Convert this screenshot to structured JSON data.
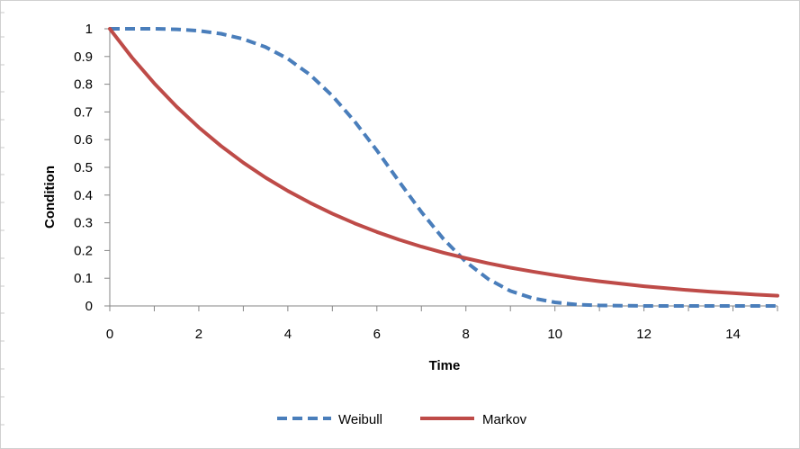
{
  "chart_data": {
    "type": "line",
    "title": "",
    "xlabel": "Time",
    "ylabel": "Condition",
    "xlim": [
      0,
      15
    ],
    "ylim": [
      0,
      1
    ],
    "x_ticks": [
      "0",
      "2",
      "4",
      "6",
      "8",
      "10",
      "12",
      "14"
    ],
    "y_ticks": [
      "0",
      "0.1",
      "0.2",
      "0.3",
      "0.4",
      "0.5",
      "0.6",
      "0.7",
      "0.8",
      "0.9",
      "1"
    ],
    "grid": false,
    "legend_position": "bottom",
    "series": [
      {
        "name": "Weibull",
        "color": "#4a7ebb",
        "style": "dashed",
        "x": [
          0,
          0.5,
          1,
          1.5,
          2,
          2.5,
          3,
          3.5,
          4,
          4.5,
          5,
          5.5,
          6,
          6.5,
          7,
          7.5,
          8,
          8.5,
          9,
          9.5,
          10,
          10.5,
          11,
          11.5,
          12,
          12.5,
          13,
          13.5,
          14,
          14.5,
          15
        ],
        "y": [
          1,
          1,
          1,
          0.998,
          0.993,
          0.982,
          0.963,
          0.934,
          0.892,
          0.834,
          0.758,
          0.666,
          0.561,
          0.449,
          0.339,
          0.241,
          0.159,
          0.097,
          0.054,
          0.028,
          0.013,
          0.005,
          0.002,
          0.001,
          0,
          0,
          0,
          0,
          0,
          0,
          0
        ]
      },
      {
        "name": "Markov",
        "color": "#be4b48",
        "style": "solid",
        "x": [
          0,
          0.5,
          1,
          1.5,
          2,
          2.5,
          3,
          3.5,
          4,
          4.5,
          5,
          5.5,
          6,
          6.5,
          7,
          7.5,
          8,
          8.5,
          9,
          9.5,
          10,
          10.5,
          11,
          11.5,
          12,
          12.5,
          13,
          13.5,
          14,
          14.5,
          15
        ],
        "y": [
          1,
          0.896,
          0.803,
          0.719,
          0.644,
          0.577,
          0.517,
          0.463,
          0.415,
          0.372,
          0.333,
          0.298,
          0.267,
          0.239,
          0.214,
          0.192,
          0.172,
          0.154,
          0.138,
          0.124,
          0.111,
          0.099,
          0.089,
          0.08,
          0.071,
          0.064,
          0.057,
          0.051,
          0.046,
          0.041,
          0.037
        ]
      }
    ]
  }
}
